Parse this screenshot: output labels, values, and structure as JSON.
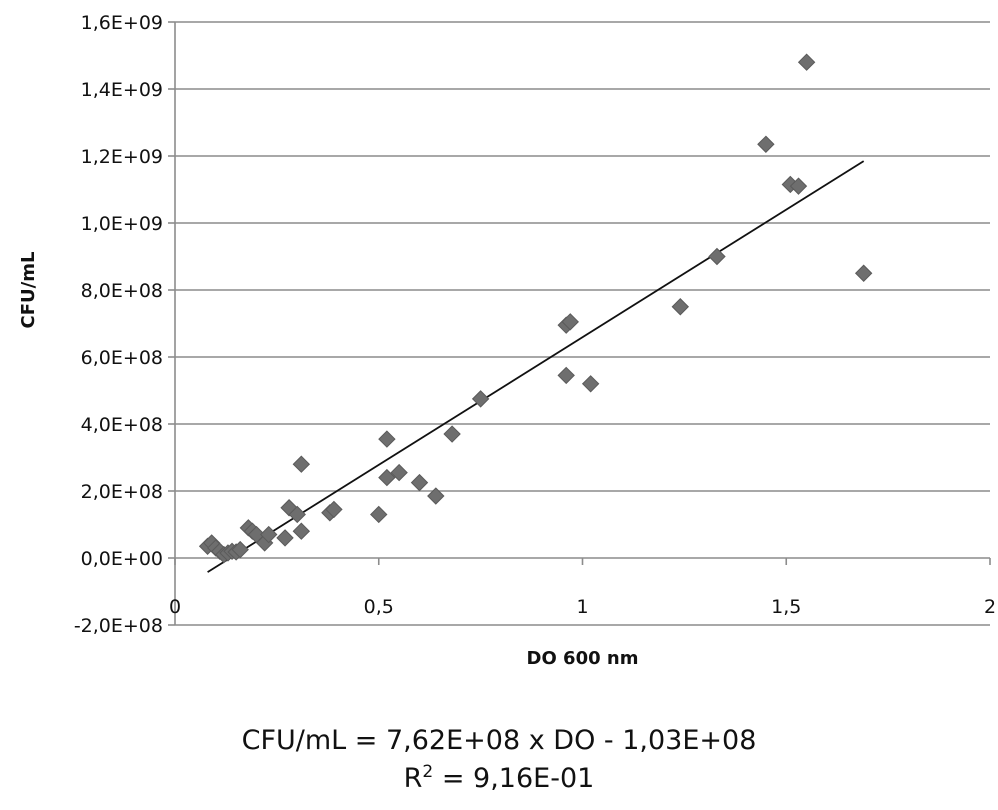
{
  "chart_data": {
    "type": "scatter",
    "xlabel": "DO 600 nm",
    "ylabel": "CFU/mL",
    "xlim": [
      0,
      2
    ],
    "ylim": [
      -200000000,
      1600000000
    ],
    "x_ticks": [
      0,
      0.5,
      1,
      1.5,
      2
    ],
    "x_tick_labels": [
      "0",
      "0,5",
      "1",
      "1,5",
      "2"
    ],
    "y_ticks": [
      -200000000,
      0,
      200000000,
      400000000,
      600000000,
      800000000,
      1000000000,
      1200000000,
      1400000000,
      1600000000
    ],
    "y_tick_labels": [
      "-2,0E+08",
      "0,0E+00",
      "2,0E+08",
      "4,0E+08",
      "6,0E+08",
      "8,0E+08",
      "1,0E+09",
      "1,2E+09",
      "1,4E+09",
      "1,6E+09"
    ],
    "grid": "horizontal",
    "legend": "none",
    "marker": "diamond",
    "marker_color": "#6e6e6e",
    "points": [
      {
        "x": 0.08,
        "y": 35000000
      },
      {
        "x": 0.09,
        "y": 45000000
      },
      {
        "x": 0.1,
        "y": 30000000
      },
      {
        "x": 0.11,
        "y": 20000000
      },
      {
        "x": 0.12,
        "y": 10000000
      },
      {
        "x": 0.13,
        "y": 15000000
      },
      {
        "x": 0.14,
        "y": 20000000
      },
      {
        "x": 0.15,
        "y": 18000000
      },
      {
        "x": 0.16,
        "y": 25000000
      },
      {
        "x": 0.18,
        "y": 90000000
      },
      {
        "x": 0.19,
        "y": 80000000
      },
      {
        "x": 0.2,
        "y": 70000000
      },
      {
        "x": 0.22,
        "y": 45000000
      },
      {
        "x": 0.23,
        "y": 70000000
      },
      {
        "x": 0.27,
        "y": 60000000
      },
      {
        "x": 0.28,
        "y": 150000000
      },
      {
        "x": 0.3,
        "y": 130000000
      },
      {
        "x": 0.31,
        "y": 80000000
      },
      {
        "x": 0.31,
        "y": 280000000
      },
      {
        "x": 0.38,
        "y": 135000000
      },
      {
        "x": 0.39,
        "y": 145000000
      },
      {
        "x": 0.5,
        "y": 130000000
      },
      {
        "x": 0.52,
        "y": 355000000
      },
      {
        "x": 0.52,
        "y": 240000000
      },
      {
        "x": 0.55,
        "y": 255000000
      },
      {
        "x": 0.6,
        "y": 225000000
      },
      {
        "x": 0.64,
        "y": 185000000
      },
      {
        "x": 0.68,
        "y": 370000000
      },
      {
        "x": 0.75,
        "y": 475000000
      },
      {
        "x": 0.96,
        "y": 545000000
      },
      {
        "x": 0.96,
        "y": 695000000
      },
      {
        "x": 0.97,
        "y": 705000000
      },
      {
        "x": 1.02,
        "y": 520000000
      },
      {
        "x": 1.24,
        "y": 750000000
      },
      {
        "x": 1.33,
        "y": 900000000
      },
      {
        "x": 1.45,
        "y": 1235000000
      },
      {
        "x": 1.51,
        "y": 1115000000
      },
      {
        "x": 1.53,
        "y": 1110000000
      },
      {
        "x": 1.55,
        "y": 1480000000
      },
      {
        "x": 1.69,
        "y": 850000000
      }
    ],
    "trendline": {
      "type": "linear",
      "slope": 762000000,
      "intercept": -103000000,
      "x_range": [
        0.08,
        1.69
      ]
    }
  },
  "equation": {
    "line1": "CFU/mL = 7,62E+08 x DO - 1,03E+08",
    "r2_prefix": "R",
    "r2_sup": "2",
    "r2_value": " = 9,16E-01"
  }
}
